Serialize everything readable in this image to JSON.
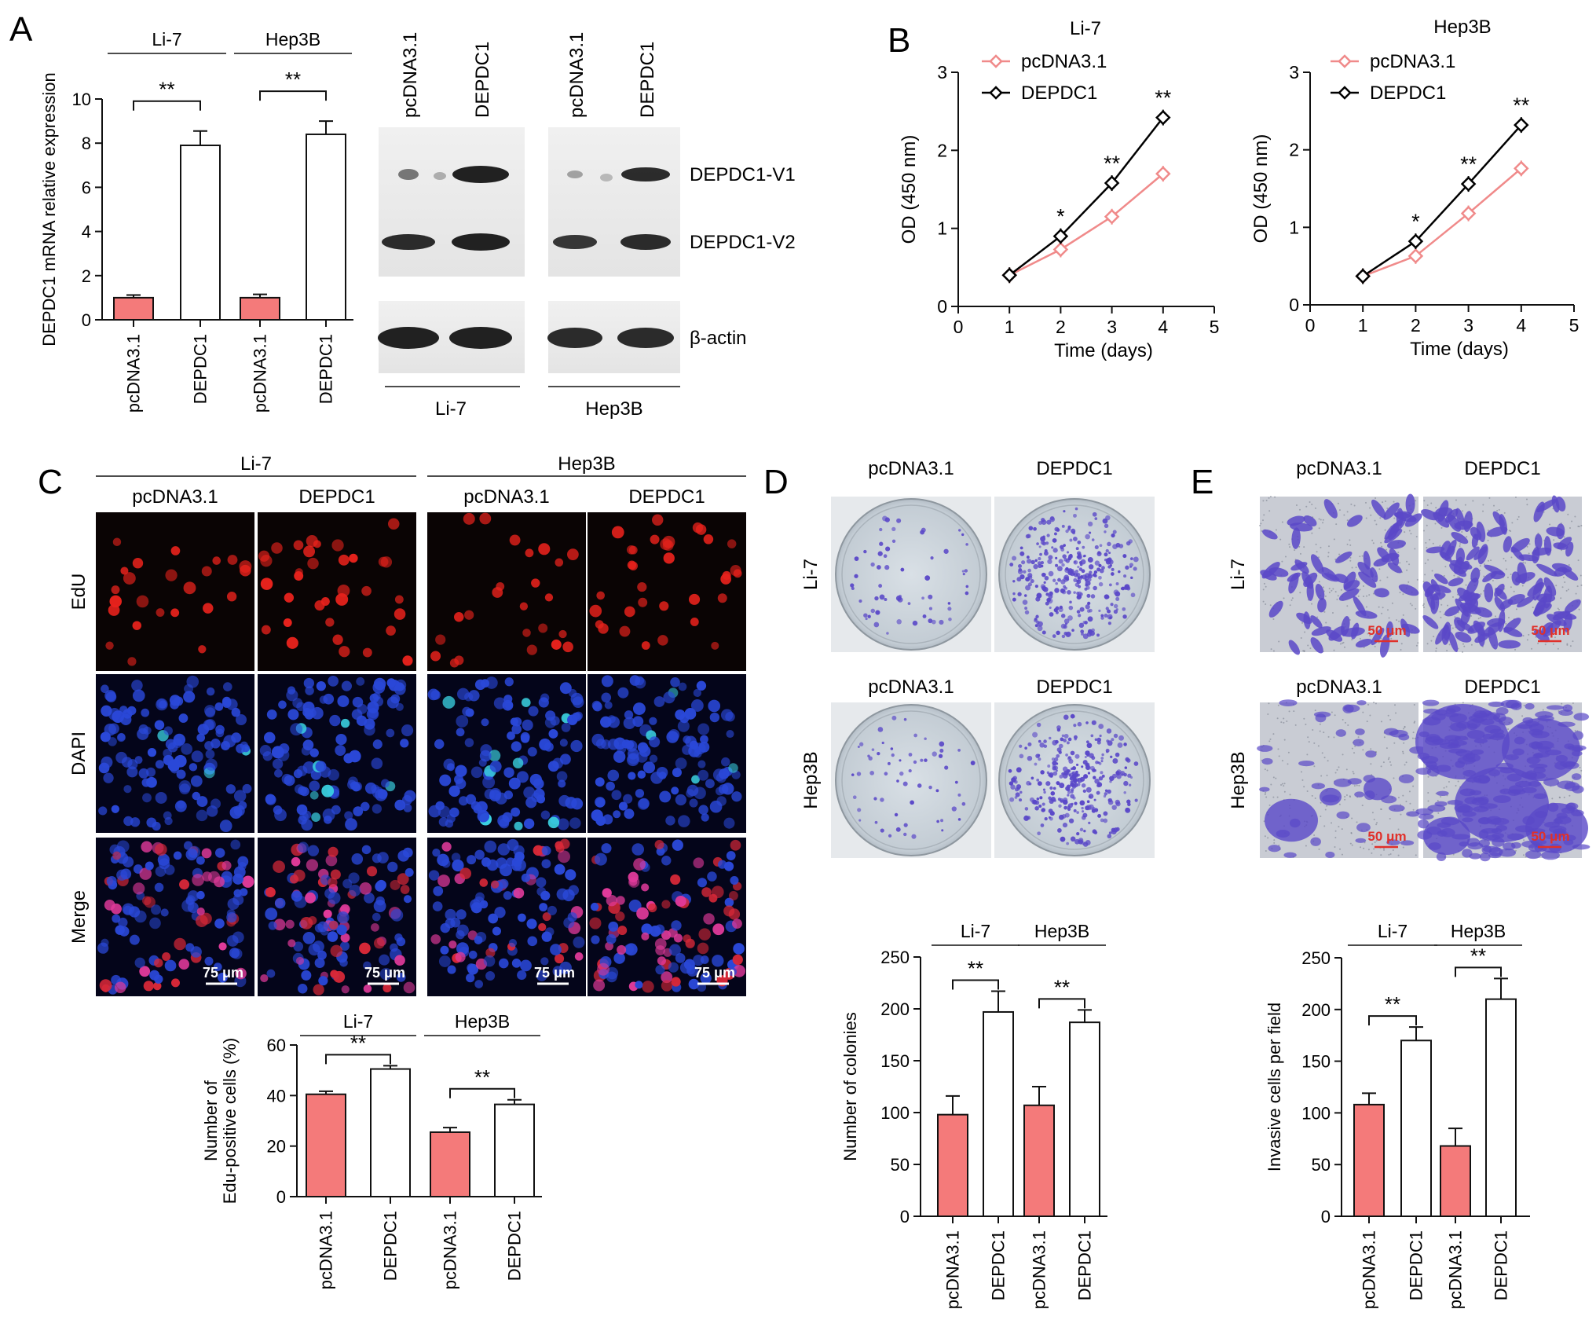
{
  "colors": {
    "control_bar": "#f47a7a",
    "control_line": "#f08a8a",
    "treated_line": "#000000",
    "edu_red": "#e8221c",
    "dapi_blue": "#2a48d8",
    "stain_violet": "#5a48c8",
    "scale_red": "#e0302a"
  },
  "panels": {
    "A": {
      "letter": "A",
      "bar_ylabel": "DEPDC1 mRNA relative expression",
      "blot_bands": [
        "DEPDC1-V1",
        "DEPDC1-V2",
        "β-actin"
      ],
      "blot_lanes": [
        "pcDNA3.1",
        "DEPDC1",
        "pcDNA3.1",
        "DEPDC1"
      ],
      "blot_groups": [
        "Li-7",
        "Hep3B"
      ]
    },
    "B": {
      "letter": "B"
    },
    "C": {
      "letter": "C",
      "groups": [
        "Li-7",
        "Hep3B"
      ],
      "columns": [
        "pcDNA3.1",
        "DEPDC1",
        "pcDNA3.1",
        "DEPDC1"
      ],
      "rows": [
        "EdU",
        "DAPI",
        "Merge"
      ],
      "scale_bar": "75 μm"
    },
    "D": {
      "letter": "D",
      "columns": [
        "pcDNA3.1",
        "DEPDC1"
      ],
      "rows": [
        "Li-7",
        "Hep3B"
      ]
    },
    "E": {
      "letter": "E",
      "columns": [
        "pcDNA3.1",
        "DEPDC1"
      ],
      "rows": [
        "Li-7",
        "Hep3B"
      ],
      "scale_bar": "50 μm"
    }
  },
  "chart_data": [
    {
      "id": "A-mrna",
      "type": "bar",
      "ylabel": "DEPDC1 mRNA relative expression",
      "ylim": [
        0,
        10
      ],
      "yticks": [
        0,
        2,
        4,
        6,
        8,
        10
      ],
      "groups": [
        "Li-7",
        "Hep3B"
      ],
      "categories": [
        "pcDNA3.1",
        "DEPDC1",
        "pcDNA3.1",
        "DEPDC1"
      ],
      "values": [
        1.0,
        7.9,
        1.0,
        8.4
      ],
      "errors": [
        0.12,
        0.65,
        0.15,
        0.6
      ],
      "significance": [
        "**",
        "**"
      ]
    },
    {
      "id": "B-li7",
      "type": "line",
      "title": "Li-7",
      "xlabel": "Time (days)",
      "ylabel": "OD (450 nm)",
      "xlim": [
        0,
        5
      ],
      "ylim": [
        0,
        3
      ],
      "xticks": [
        0,
        1,
        2,
        3,
        4,
        5
      ],
      "yticks": [
        0,
        1,
        2,
        3
      ],
      "x": [
        1,
        2,
        3,
        4
      ],
      "series": [
        {
          "name": "pcDNA3.1",
          "values": [
            0.4,
            0.73,
            1.15,
            1.7
          ]
        },
        {
          "name": "DEPDC1",
          "values": [
            0.4,
            0.9,
            1.58,
            2.42
          ]
        }
      ],
      "significance": [
        "",
        "*",
        "**",
        "**"
      ],
      "legend": "top-left"
    },
    {
      "id": "B-hep3b",
      "type": "line",
      "title": "Hep3B",
      "xlabel": "Time (days)",
      "ylabel": "OD (450 nm)",
      "xlim": [
        0,
        5
      ],
      "ylim": [
        0,
        3
      ],
      "xticks": [
        0,
        1,
        2,
        3,
        4,
        5
      ],
      "yticks": [
        0,
        1,
        2,
        3
      ],
      "x": [
        1,
        2,
        3,
        4
      ],
      "series": [
        {
          "name": "pcDNA3.1",
          "values": [
            0.37,
            0.63,
            1.18,
            1.76
          ]
        },
        {
          "name": "DEPDC1",
          "values": [
            0.37,
            0.82,
            1.56,
            2.32
          ]
        }
      ],
      "significance": [
        "",
        "*",
        "**",
        "**"
      ],
      "legend": "top-left"
    },
    {
      "id": "C-edu",
      "type": "bar",
      "ylabel": "Number of Edu-positive cells (%)",
      "ylabel_lines": [
        "Number of",
        "Edu-positive cells (%)"
      ],
      "ylim": [
        0,
        60
      ],
      "yticks": [
        0,
        20,
        40,
        60
      ],
      "groups": [
        "Li-7",
        "Hep3B"
      ],
      "categories": [
        "pcDNA3.1",
        "DEPDC1",
        "pcDNA3.1",
        "DEPDC1"
      ],
      "values": [
        40.5,
        50.5,
        25.5,
        36.5
      ],
      "errors": [
        1.2,
        1.3,
        1.8,
        1.8
      ],
      "significance": [
        "**",
        "**"
      ]
    },
    {
      "id": "D-colonies",
      "type": "bar",
      "ylabel": "Number of colonies",
      "ylim": [
        0,
        250
      ],
      "yticks": [
        0,
        50,
        100,
        150,
        200,
        250
      ],
      "groups": [
        "Li-7",
        "Hep3B"
      ],
      "categories": [
        "pcDNA3.1",
        "DEPDC1",
        "pcDNA3.1",
        "DEPDC1"
      ],
      "values": [
        98,
        197,
        107,
        187
      ],
      "errors": [
        18,
        20,
        18,
        12
      ],
      "significance": [
        "**",
        "**"
      ]
    },
    {
      "id": "E-invasive",
      "type": "bar",
      "ylabel": "Invasive cells per field",
      "ylim": [
        0,
        250
      ],
      "yticks": [
        0,
        50,
        100,
        150,
        200,
        250
      ],
      "groups": [
        "Li-7",
        "Hep3B"
      ],
      "categories": [
        "pcDNA3.1",
        "DEPDC1",
        "pcDNA3.1",
        "DEPDC1"
      ],
      "values": [
        108,
        170,
        68,
        210
      ],
      "errors": [
        11,
        13,
        17,
        20
      ],
      "significance": [
        "**",
        "**"
      ]
    }
  ]
}
